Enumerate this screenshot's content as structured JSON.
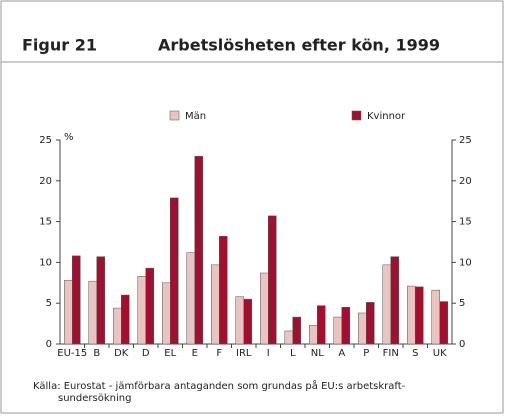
{
  "chart_data": {
    "type": "bar",
    "figure": "Figur 21",
    "title": "Arbetslösheten efter kön, 1999",
    "ylabel": "%",
    "categories": [
      "EU-15",
      "B",
      "DK",
      "D",
      "EL",
      "E",
      "F",
      "IRL",
      "I",
      "L",
      "NL",
      "A",
      "P",
      "FIN",
      "S",
      "UK"
    ],
    "series": [
      {
        "name": "Män",
        "color": "#e9c5c1",
        "values": [
          7.8,
          7.7,
          4.4,
          8.3,
          7.5,
          11.2,
          9.7,
          5.8,
          8.7,
          1.6,
          2.3,
          3.3,
          3.8,
          9.7,
          7.1,
          6.6
        ]
      },
      {
        "name": "Kvinnor",
        "color": "#a3102f",
        "values": [
          10.8,
          10.7,
          6.0,
          9.3,
          17.9,
          23.0,
          13.2,
          5.5,
          15.7,
          3.3,
          4.7,
          4.5,
          5.1,
          10.7,
          7.0,
          5.2
        ]
      }
    ],
    "ylim": [
      0,
      25
    ],
    "yticks": [
      0,
      5,
      10,
      15,
      20,
      25
    ],
    "y2lim": [
      0,
      25
    ],
    "y2ticks": [
      0,
      5,
      10,
      15,
      20,
      25
    ],
    "source": [
      "Källa: Eurostat - jämförbara antaganden som grundas på EU:s arbetskraft-",
      "sundersökning"
    ]
  }
}
